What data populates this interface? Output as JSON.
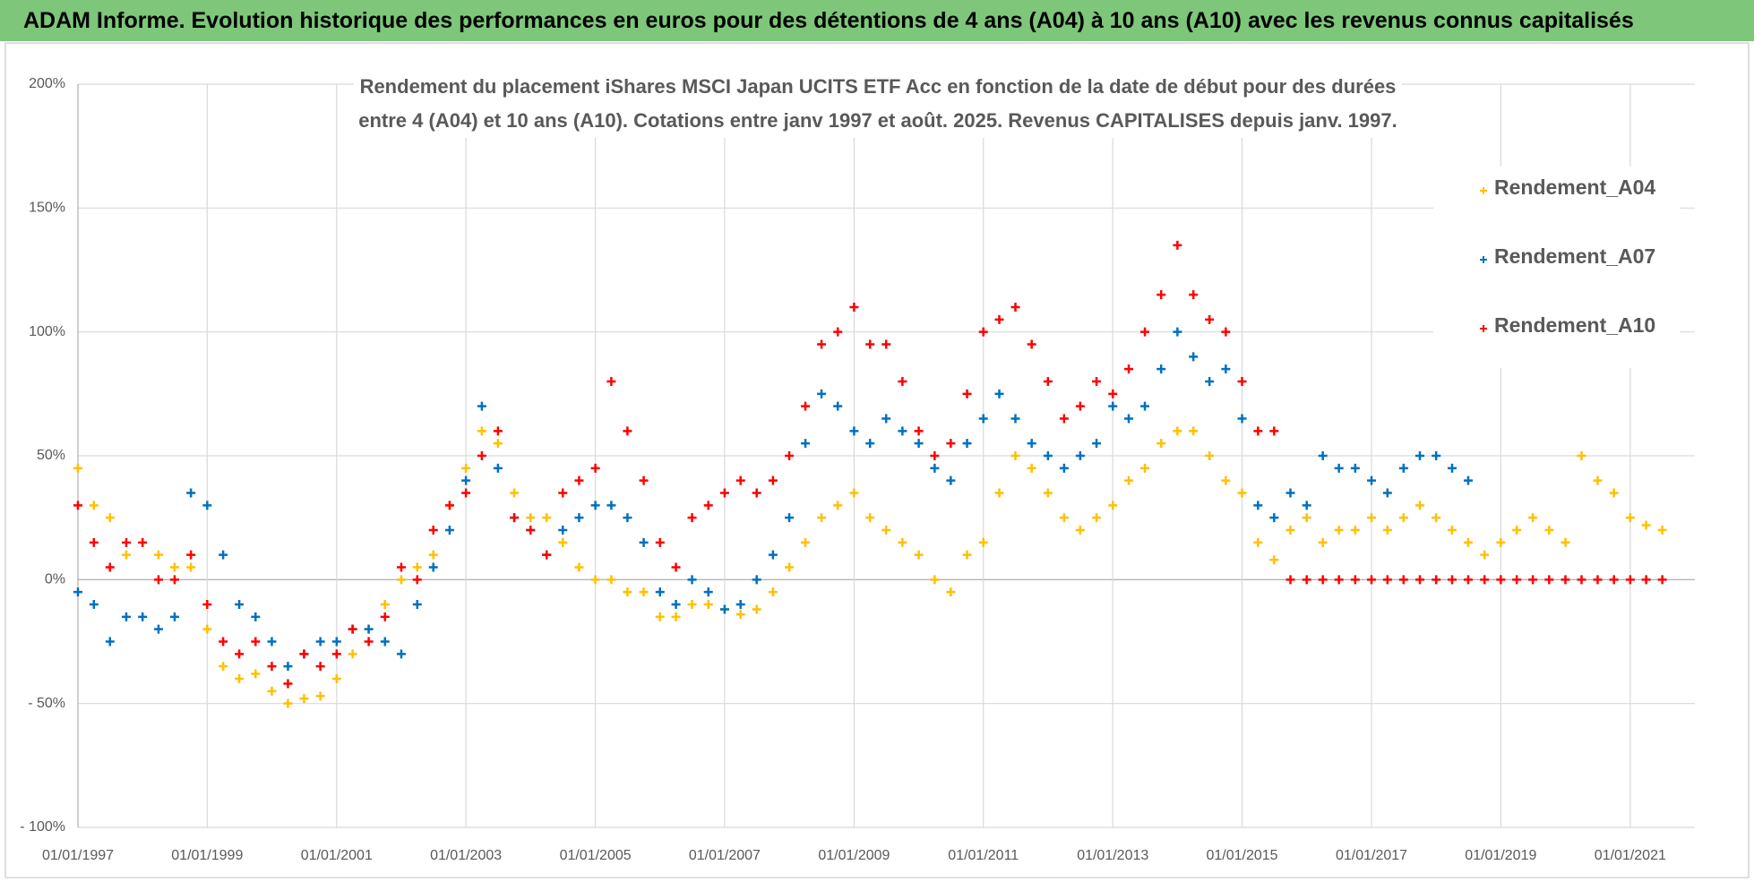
{
  "chart_data": {
    "type": "scatter",
    "title": "ADAM Informe. Evolution historique des performances en euros pour des détentions de 4 ans (A04) à 10 ans (A10) avec les revenus connus capitalisés",
    "subtitle": "Rendement du placement iShares MSCI Japan UCITS ETF Acc en fonction de la date de début pour des durées entre 4 (A04) et 10 ans (A10).  Cotations entre janv 1997 et août. 2025. Revenus CAPITALISES depuis janv. 1997.",
    "x": [
      "1997-01-01",
      "1997-04-01",
      "1997-07-01",
      "1997-10-01",
      "1998-01-01",
      "1998-04-01",
      "1998-07-01",
      "1998-10-01",
      "1999-01-01",
      "1999-04-01",
      "1999-07-01",
      "1999-10-01",
      "2000-01-01",
      "2000-04-01",
      "2000-07-01",
      "2000-10-01",
      "2001-01-01",
      "2001-04-01",
      "2001-07-01",
      "2001-10-01",
      "2002-01-01",
      "2002-04-01",
      "2002-07-01",
      "2002-10-01",
      "2003-01-01",
      "2003-04-01",
      "2003-07-01",
      "2003-10-01",
      "2004-01-01",
      "2004-04-01",
      "2004-07-01",
      "2004-10-01",
      "2005-01-01",
      "2005-04-01",
      "2005-07-01",
      "2005-10-01",
      "2006-01-01",
      "2006-04-01",
      "2006-07-01",
      "2006-10-01",
      "2007-01-01",
      "2007-04-01",
      "2007-07-01",
      "2007-10-01",
      "2008-01-01",
      "2008-04-01",
      "2008-07-01",
      "2008-10-01",
      "2009-01-01",
      "2009-04-01",
      "2009-07-01",
      "2009-10-01",
      "2010-01-01",
      "2010-04-01",
      "2010-07-01",
      "2010-10-01",
      "2011-01-01",
      "2011-04-01",
      "2011-07-01",
      "2011-10-01",
      "2012-01-01",
      "2012-04-01",
      "2012-07-01",
      "2012-10-01",
      "2013-01-01",
      "2013-04-01",
      "2013-07-01",
      "2013-10-01",
      "2014-01-01",
      "2014-04-01",
      "2014-07-01",
      "2014-10-01",
      "2015-01-01",
      "2015-04-01",
      "2015-07-01",
      "2015-10-01",
      "2016-01-01",
      "2016-04-01",
      "2016-07-01",
      "2016-10-01",
      "2017-01-01",
      "2017-04-01",
      "2017-07-01",
      "2017-10-01",
      "2018-01-01",
      "2018-04-01",
      "2018-07-01",
      "2018-10-01",
      "2019-01-01",
      "2019-04-01",
      "2019-07-01",
      "2019-10-01",
      "2020-01-01",
      "2020-04-01",
      "2020-07-01",
      "2020-10-01",
      "2021-01-01",
      "2021-04-01",
      "2021-07-01"
    ],
    "series": [
      {
        "name": "Rendement_A04",
        "color": "#ffc000",
        "values": [
          45,
          30,
          25,
          10,
          15,
          10,
          5,
          5,
          -20,
          -35,
          -40,
          -38,
          -45,
          -50,
          -48,
          -47,
          -40,
          -30,
          -20,
          -10,
          0,
          5,
          10,
          30,
          45,
          60,
          55,
          35,
          25,
          25,
          15,
          5,
          0,
          0,
          -5,
          -5,
          -15,
          -15,
          -10,
          -10,
          -12,
          -14,
          -12,
          -5,
          5,
          15,
          25,
          30,
          35,
          25,
          20,
          15,
          10,
          0,
          -5,
          10,
          15,
          35,
          50,
          45,
          35,
          25,
          20,
          25,
          30,
          40,
          45,
          55,
          60,
          60,
          50,
          40,
          35,
          15,
          8,
          20,
          25,
          15,
          20,
          20,
          25,
          20,
          25,
          30,
          25,
          20,
          15,
          10,
          15,
          20,
          25,
          20,
          15,
          50,
          40,
          35,
          25,
          22,
          20
        ]
      },
      {
        "name": "Rendement_A07",
        "color": "#0070c0",
        "values": [
          -5,
          -10,
          -25,
          -15,
          -15,
          -20,
          -15,
          35,
          30,
          10,
          -10,
          -15,
          -25,
          -35,
          -30,
          -25,
          -25,
          -20,
          -20,
          -25,
          -30,
          -10,
          5,
          20,
          40,
          70,
          45,
          25,
          20,
          10,
          20,
          25,
          30,
          30,
          25,
          15,
          -5,
          -10,
          0,
          -5,
          -12,
          -10,
          0,
          10,
          25,
          55,
          75,
          70,
          60,
          55,
          65,
          60,
          55,
          45,
          40,
          55,
          65,
          75,
          65,
          55,
          50,
          45,
          50,
          55,
          70,
          65,
          70,
          85,
          100,
          90,
          80,
          85,
          65,
          30,
          25,
          35,
          30,
          50,
          45,
          45,
          40,
          35,
          45,
          50,
          50,
          45,
          40,
          null,
          null,
          null,
          null,
          null,
          null,
          null,
          null,
          null,
          null,
          null,
          null
        ]
      },
      {
        "name": "Rendement_A10",
        "color": "#ff0000",
        "values": [
          30,
          15,
          5,
          15,
          15,
          0,
          0,
          10,
          -10,
          -25,
          -30,
          -25,
          -35,
          -42,
          -30,
          -35,
          -30,
          -20,
          -25,
          -15,
          5,
          0,
          20,
          30,
          35,
          50,
          60,
          25,
          20,
          10,
          35,
          40,
          45,
          80,
          60,
          40,
          15,
          5,
          25,
          30,
          35,
          40,
          35,
          40,
          50,
          70,
          95,
          100,
          110,
          95,
          95,
          80,
          60,
          50,
          55,
          75,
          100,
          105,
          110,
          95,
          80,
          65,
          70,
          80,
          75,
          85,
          100,
          115,
          135,
          115,
          105,
          100,
          80,
          60,
          60,
          0,
          0,
          0,
          0,
          0,
          0,
          0,
          0,
          0,
          0,
          0,
          0,
          0,
          0,
          0,
          0,
          0,
          0,
          0,
          0,
          0,
          0,
          0,
          0
        ]
      }
    ],
    "xlim": [
      "1997-01-01",
      "2022-01-01"
    ],
    "xticks": [
      {
        "value": "1997-01-01",
        "label": "01/01/1997"
      },
      {
        "value": "1999-01-01",
        "label": "01/01/1999"
      },
      {
        "value": "2001-01-01",
        "label": "01/01/2001"
      },
      {
        "value": "2003-01-01",
        "label": "01/01/2003"
      },
      {
        "value": "2005-01-01",
        "label": "01/01/2005"
      },
      {
        "value": "2007-01-01",
        "label": "01/01/2007"
      },
      {
        "value": "2009-01-01",
        "label": "01/01/2009"
      },
      {
        "value": "2011-01-01",
        "label": "01/01/2011"
      },
      {
        "value": "2013-01-01",
        "label": "01/01/2013"
      },
      {
        "value": "2015-01-01",
        "label": "01/01/2015"
      },
      {
        "value": "2017-01-01",
        "label": "01/01/2017"
      },
      {
        "value": "2019-01-01",
        "label": "01/01/2019"
      },
      {
        "value": "2021-01-01",
        "label": "01/01/2021"
      }
    ],
    "ylim": [
      -100,
      200
    ],
    "yticks": [
      {
        "value": -100,
        "label": "- 100%"
      },
      {
        "value": -50,
        "label": "- 50%"
      },
      {
        "value": 0,
        "label": "0%"
      },
      {
        "value": 50,
        "label": "50%"
      },
      {
        "value": 100,
        "label": "100%"
      },
      {
        "value": 150,
        "label": "150%"
      },
      {
        "value": 200,
        "label": "200%"
      }
    ],
    "grid": true,
    "legend": "right"
  }
}
